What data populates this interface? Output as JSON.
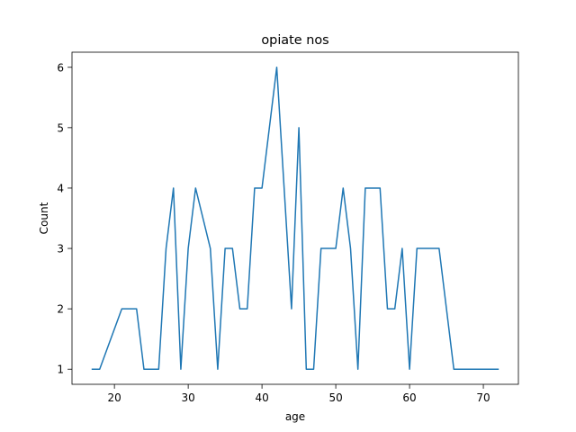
{
  "chart_data": {
    "type": "line",
    "title": "opiate nos",
    "xlabel": "age",
    "ylabel": "Count",
    "xlim": [
      14.25,
      74.75
    ],
    "ylim": [
      0.75,
      6.25
    ],
    "xticks": [
      20,
      30,
      40,
      50,
      60,
      70
    ],
    "yticks": [
      1,
      2,
      3,
      4,
      5,
      6
    ],
    "grid": false,
    "line_color": "#1f77b4",
    "series": [
      {
        "x": [
          17,
          18,
          21,
          22,
          23,
          24,
          25,
          26,
          27,
          28,
          29,
          30,
          31,
          33,
          34,
          35,
          36,
          37,
          38,
          39,
          40,
          42,
          44,
          45,
          46,
          47,
          48,
          50,
          51,
          52,
          53,
          54,
          55,
          56,
          57,
          58,
          59,
          60,
          61,
          62,
          64,
          66,
          67,
          70,
          72
        ],
        "y": [
          1,
          1,
          2,
          2,
          2,
          1,
          1,
          1,
          3,
          4,
          1,
          3,
          4,
          3,
          1,
          3,
          3,
          2,
          2,
          4,
          4,
          6,
          2,
          5,
          1,
          1,
          3,
          3,
          4,
          3,
          1,
          4,
          4,
          4,
          2,
          2,
          3,
          1,
          3,
          3,
          3,
          1,
          1,
          1,
          1
        ]
      }
    ]
  }
}
